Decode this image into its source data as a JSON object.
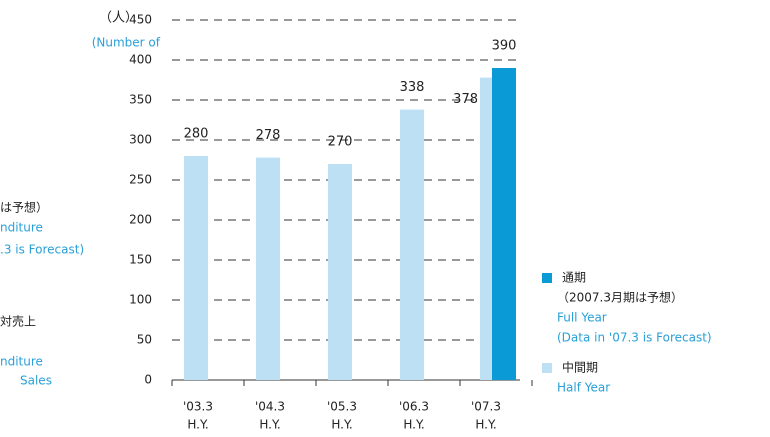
{
  "chart_data": {
    "type": "bar",
    "y_unit": [
      "（人）",
      "(Number of"
    ],
    "side_texts": [
      {
        "text": "は予想）",
        "color": "#222222"
      },
      {
        "text": "nditure",
        "color": "#29a0d8"
      },
      {
        "text": ".3 is Forecast)",
        "color": "#29a0d8"
      },
      {
        "text": "対売上",
        "color": "#222222"
      },
      {
        "text": "nditure",
        "color": "#29a0d8"
      },
      {
        "text": "Sales",
        "color": "#29a0d8"
      }
    ],
    "categories": [
      [
        "'03.3",
        "H.Y."
      ],
      [
        "'04.3",
        "H.Y."
      ],
      [
        "'05.3",
        "H.Y."
      ],
      [
        "'06.3",
        "H.Y."
      ],
      [
        "'07.3",
        "H.Y."
      ]
    ],
    "series": [
      {
        "name": "中間期",
        "legend_lines": [
          "Half Year"
        ],
        "color": "#bde0f5",
        "values": [
          280,
          278,
          270,
          338,
          378
        ]
      },
      {
        "name": "通期",
        "legend_lines": [
          "（2007.3月期は予想）",
          "Full Year",
          "(Data in '07.3 is Forecast)"
        ],
        "color": "#0a9ad6",
        "values": [
          null,
          null,
          null,
          null,
          390
        ]
      }
    ],
    "ylim": [
      0,
      450
    ],
    "yticks": [
      0,
      50,
      100,
      150,
      200,
      250,
      300,
      350,
      400,
      450
    ],
    "grid": true
  }
}
